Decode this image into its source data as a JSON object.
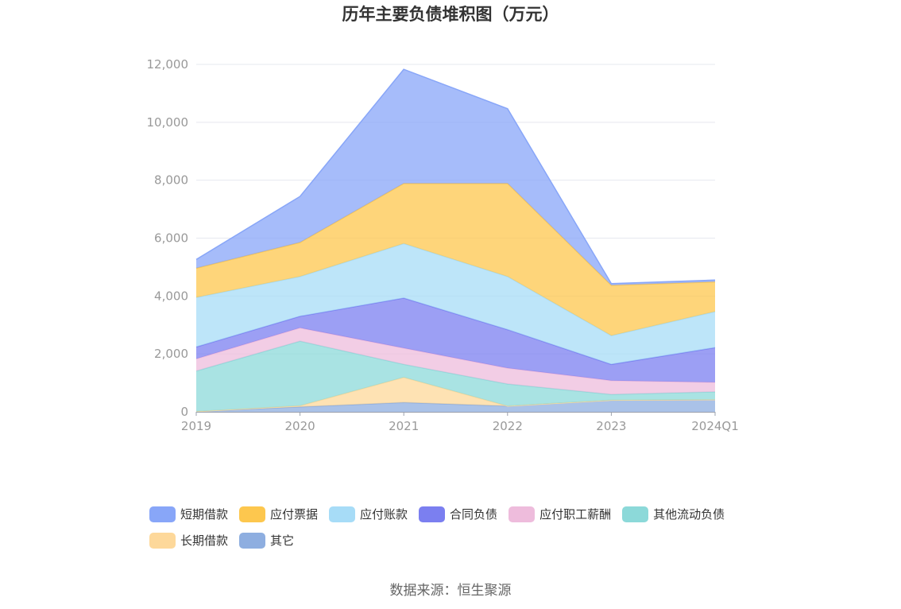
{
  "chart_data": {
    "type": "area",
    "stacked": true,
    "title": "历年主要负债堆积图（万元）",
    "categories": [
      "2019",
      "2020",
      "2021",
      "2022",
      "2023",
      "2024Q1"
    ],
    "ylim": [
      0,
      12000
    ],
    "yticks": [
      "0",
      "2,000",
      "4,000",
      "6,000",
      "8,000",
      "10,000",
      "12,000"
    ],
    "grid": true,
    "legend_position": "bottom",
    "series": [
      {
        "name": "其它",
        "color": "#8eaee0",
        "values": [
          10,
          170,
          320,
          200,
          400,
          420
        ]
      },
      {
        "name": "长期借款",
        "color": "#fdd89a",
        "values": [
          0,
          40,
          870,
          0,
          0,
          0
        ]
      },
      {
        "name": "其他流动负债",
        "color": "#8cd9d9",
        "values": [
          1400,
          2230,
          450,
          760,
          200,
          270
        ]
      },
      {
        "name": "应付职工薪酬",
        "color": "#eebcdc",
        "values": [
          420,
          460,
          560,
          550,
          480,
          330
        ]
      },
      {
        "name": "合同负债",
        "color": "#7b7ff0",
        "values": [
          410,
          400,
          1730,
          1330,
          560,
          1200
        ]
      },
      {
        "name": "应付账款",
        "color": "#a7dcf7",
        "values": [
          1710,
          1370,
          1880,
          1830,
          990,
          1240
        ]
      },
      {
        "name": "应付票据",
        "color": "#fdc74e",
        "values": [
          1010,
          1180,
          2080,
          3220,
          1740,
          1030
        ]
      },
      {
        "name": "短期借款",
        "color": "#88a6f8",
        "values": [
          300,
          1590,
          3940,
          2580,
          60,
          60
        ]
      }
    ]
  },
  "legend": [
    {
      "name": "短期借款",
      "color": "#88a6f8"
    },
    {
      "name": "应付票据",
      "color": "#fdc74e"
    },
    {
      "name": "应付账款",
      "color": "#a7dcf7"
    },
    {
      "name": "合同负债",
      "color": "#7b7ff0"
    },
    {
      "name": "应付职工薪酬",
      "color": "#eebcdc"
    },
    {
      "name": "其他流动负债",
      "color": "#8cd9d9"
    },
    {
      "name": "长期借款",
      "color": "#fdd89a"
    },
    {
      "name": "其它",
      "color": "#8eaee0"
    }
  ],
  "source": "数据来源：恒生聚源"
}
